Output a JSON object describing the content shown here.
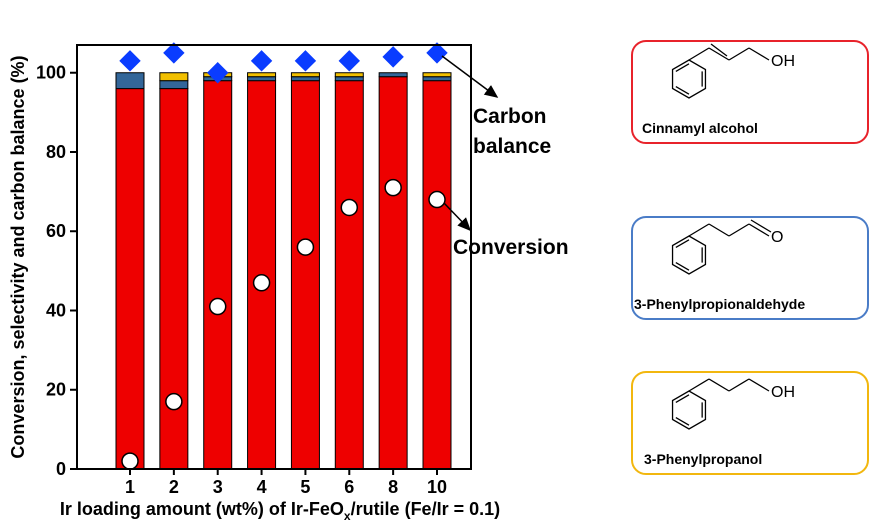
{
  "chart_data": {
    "type": "bar",
    "categories": [
      "1",
      "2",
      "3",
      "4",
      "5",
      "6",
      "8",
      "10"
    ],
    "xlabel_parts": {
      "before": "Ir loading amount (wt%) of Ir-FeO",
      "sub": "x",
      "after": "/rutile (Fe/Ir = 0.1)"
    },
    "ylabel": "Conversion, selectivity and carbon balance (%)",
    "ylim": [
      0,
      107
    ],
    "yticks": [
      0,
      20,
      40,
      60,
      80,
      100
    ],
    "stacked": true,
    "series": [
      {
        "name": "Cinnamyl alcohol",
        "color": "#ee0000",
        "values": [
          96,
          96,
          98,
          98,
          98,
          98,
          99,
          98
        ]
      },
      {
        "name": "3-Phenylpropionaldehyde",
        "color": "#336699",
        "values": [
          4,
          2,
          1,
          1,
          1,
          1,
          1,
          1
        ]
      },
      {
        "name": "3-Phenylpropanol",
        "color": "#f2c000",
        "values": [
          0,
          2,
          1,
          1,
          1,
          1,
          0,
          1
        ]
      }
    ],
    "carbon_balance": {
      "label": "Carbon\nbalance",
      "color": "#0a3cff",
      "values": [
        103,
        105,
        100,
        103,
        103,
        103,
        104,
        105
      ]
    },
    "conversion": {
      "label": "Conversion",
      "values": [
        2,
        17,
        41,
        47,
        56,
        66,
        71,
        68
      ]
    },
    "grid": false,
    "legend_position": "right",
    "legend_items": [
      {
        "label": "Cinnamyl alcohol",
        "border": "#e8232b",
        "structure": "cinnamyl",
        "struct_text": "OH"
      },
      {
        "label": "3-Phenylpropionaldehyde",
        "border": "#4a7cc7",
        "structure": "aldehyde",
        "struct_text": "O"
      },
      {
        "label": "3-Phenylpropanol",
        "border": "#f2b70f",
        "structure": "propanol",
        "struct_text": "OH"
      }
    ]
  }
}
